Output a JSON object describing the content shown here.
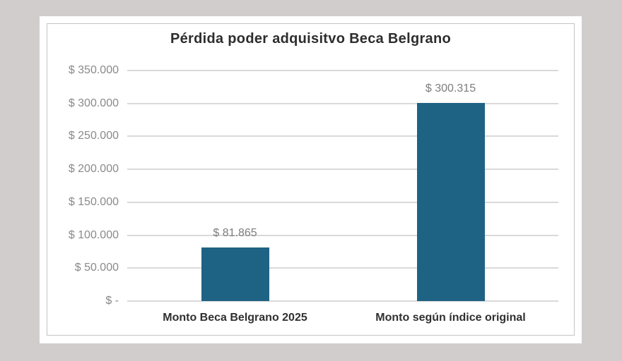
{
  "window": {
    "background": "#d1cdcd"
  },
  "colors": {
    "card_background": "#ffffff",
    "card_border": "#c6c3c3",
    "gridline": "#d9d9d9",
    "bar": "#1f6384",
    "axis_tick_label": "#8a8a8a",
    "value_label": "#7d7d7d",
    "title": "#2d2d2d",
    "category_label": "#303030"
  },
  "chart_data": {
    "type": "bar",
    "title": "Pérdida poder adquisitvo Beca Belgrano",
    "categories": [
      "Monto Beca Belgrano 2025",
      "Monto según índice original"
    ],
    "values": [
      81865,
      300315
    ],
    "value_labels": [
      "$ 81.865",
      "$ 300.315"
    ],
    "yticks": [
      {
        "value": 0,
        "label": "$ -"
      },
      {
        "value": 50000,
        "label": "$ 50.000"
      },
      {
        "value": 100000,
        "label": "$ 100.000"
      },
      {
        "value": 150000,
        "label": "$ 150.000"
      },
      {
        "value": 200000,
        "label": "$ 200.000"
      },
      {
        "value": 250000,
        "label": "$ 250.000"
      },
      {
        "value": 300000,
        "label": "$ 300.000"
      },
      {
        "value": 350000,
        "label": "$ 350.000"
      }
    ],
    "ylim": [
      0,
      350000
    ],
    "xlabel": "",
    "ylabel": "",
    "grid": true,
    "legend": false
  }
}
